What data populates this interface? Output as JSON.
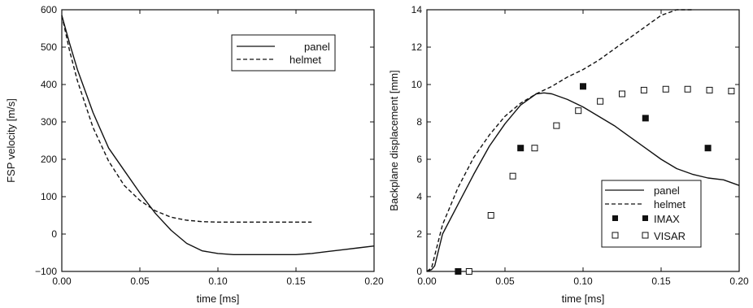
{
  "chart_data": [
    {
      "type": "line",
      "xlabel": "time [ms]",
      "ylabel": "FSP velocity [m/s]",
      "xlim": [
        0,
        0.2
      ],
      "ylim": [
        -100,
        600
      ],
      "xticks": [
        "0.00",
        "0.05",
        "0.10",
        "0.15",
        "0.20"
      ],
      "yticks": [
        "−100",
        "0",
        "100",
        "200",
        "300",
        "400",
        "500",
        "600"
      ],
      "xtick_values": [
        0,
        0.05,
        0.1,
        0.15,
        0.2
      ],
      "ytick_values": [
        -100,
        0,
        100,
        200,
        300,
        400,
        500,
        600
      ],
      "grid": false,
      "legend_position": "top-right",
      "series": [
        {
          "name": "panel",
          "style": "solid",
          "x": [
            0,
            0.005,
            0.01,
            0.02,
            0.03,
            0.04,
            0.05,
            0.06,
            0.07,
            0.08,
            0.09,
            0.1,
            0.11,
            0.12,
            0.13,
            0.14,
            0.15,
            0.16,
            0.17,
            0.18,
            0.19,
            0.2
          ],
          "y": [
            585,
            510,
            440,
            325,
            230,
            170,
            110,
            55,
            10,
            -25,
            -45,
            -52,
            -55,
            -55,
            -55,
            -55,
            -55,
            -52,
            -47,
            -42,
            -37,
            -32
          ]
        },
        {
          "name": "helmet",
          "style": "dashed",
          "x": [
            0,
            0.005,
            0.01,
            0.02,
            0.03,
            0.04,
            0.05,
            0.06,
            0.07,
            0.08,
            0.09,
            0.1,
            0.12,
            0.14,
            0.16
          ],
          "y": [
            585,
            490,
            410,
            285,
            195,
            130,
            90,
            62,
            45,
            37,
            33,
            32,
            32,
            32,
            32
          ]
        }
      ]
    },
    {
      "type": "line",
      "xlabel": "time [ms]",
      "ylabel": "Backplane displacement [mm]",
      "xlim": [
        0,
        0.2
      ],
      "ylim": [
        0,
        14
      ],
      "xticks": [
        "0.00",
        "0.05",
        "0.10",
        "0.15",
        "0.20"
      ],
      "yticks": [
        "0",
        "2",
        "4",
        "6",
        "8",
        "10",
        "12",
        "14"
      ],
      "xtick_values": [
        0,
        0.05,
        0.1,
        0.15,
        0.2
      ],
      "ytick_values": [
        0,
        2,
        4,
        6,
        8,
        10,
        12,
        14
      ],
      "grid": false,
      "legend_position": "bottom-right",
      "series": [
        {
          "name": "panel",
          "style": "solid",
          "x": [
            0,
            0.003,
            0.005,
            0.01,
            0.02,
            0.03,
            0.04,
            0.05,
            0.06,
            0.07,
            0.075,
            0.08,
            0.09,
            0.1,
            0.11,
            0.12,
            0.13,
            0.14,
            0.15,
            0.16,
            0.17,
            0.18,
            0.19,
            0.2
          ],
          "y": [
            0,
            0.1,
            0.3,
            2.0,
            3.6,
            5.2,
            6.7,
            7.9,
            8.9,
            9.5,
            9.55,
            9.5,
            9.2,
            8.8,
            8.3,
            7.8,
            7.2,
            6.6,
            6.0,
            5.5,
            5.2,
            5.0,
            4.9,
            4.6
          ]
        },
        {
          "name": "helmet",
          "style": "dashed",
          "x": [
            0,
            0.003,
            0.01,
            0.02,
            0.03,
            0.04,
            0.05,
            0.06,
            0.07,
            0.08,
            0.09,
            0.1,
            0.11,
            0.12,
            0.13,
            0.14,
            0.15,
            0.16,
            0.17
          ],
          "y": [
            0,
            0.2,
            2.5,
            4.5,
            6.1,
            7.3,
            8.3,
            9.0,
            9.5,
            9.9,
            10.4,
            10.8,
            11.3,
            11.9,
            12.5,
            13.1,
            13.7,
            14.2,
            14.6
          ]
        },
        {
          "name": "IMAX",
          "style": "marker-filled-square",
          "x": [
            0.02,
            0.06,
            0.1,
            0.14,
            0.18
          ],
          "y": [
            0,
            6.6,
            9.9,
            8.2,
            6.6
          ]
        },
        {
          "name": "VISAR",
          "style": "marker-open-square",
          "x": [
            0.027,
            0.041,
            0.055,
            0.069,
            0.083,
            0.097,
            0.111,
            0.125,
            0.139,
            0.153,
            0.167,
            0.181,
            0.195
          ],
          "y": [
            0,
            3.0,
            5.1,
            6.6,
            7.8,
            8.6,
            9.1,
            9.5,
            9.7,
            9.75,
            9.75,
            9.7,
            9.65
          ]
        }
      ]
    }
  ]
}
